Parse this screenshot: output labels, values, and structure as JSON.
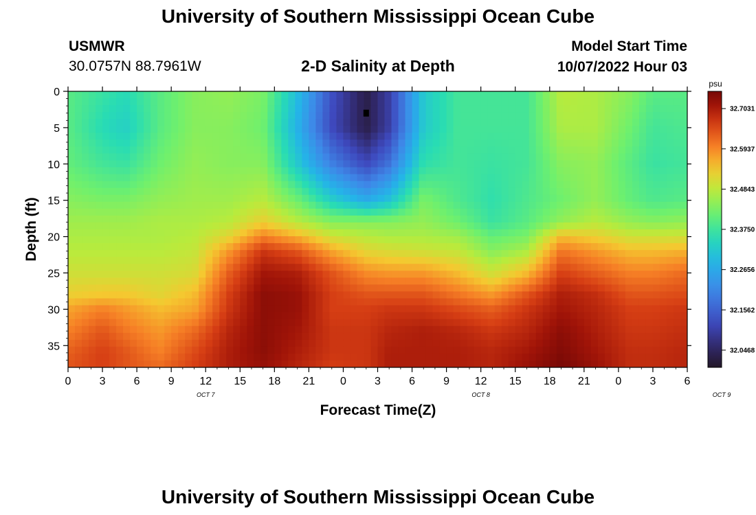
{
  "header": {
    "title": "University of Southern Mississippi Ocean Cube",
    "station_id": "USMWR",
    "coordinates": "30.0757N  88.7961W",
    "chart_title": "2-D Salinity at Depth",
    "model_start_label": "Model Start Time",
    "model_start_value": "10/07/2022 Hour 03"
  },
  "footer": {
    "title": "University of Southern Mississippi Ocean Cube"
  },
  "chart_data": {
    "type": "heatmap",
    "title": "2-D Salinity at Depth",
    "xlabel": "Forecast Time(Z)",
    "ylabel": "Depth (ft)",
    "x_tick_labels": [
      "0",
      "3",
      "6",
      "9",
      "12",
      "15",
      "18",
      "21",
      "0",
      "3",
      "6",
      "9",
      "12",
      "15",
      "18",
      "21",
      "0",
      "3",
      "6"
    ],
    "x_day_labels": [
      {
        "label": "OCT 7",
        "hour": 12
      },
      {
        "label": "OCT 8",
        "hour": 36
      },
      {
        "label": "OCT 9",
        "hour": 57
      }
    ],
    "xlim_hours": [
      0,
      54
    ],
    "y_ticks": [
      0,
      5,
      10,
      15,
      20,
      25,
      30,
      35
    ],
    "ylim": [
      0,
      38
    ],
    "y_inverted": true,
    "colorbar": {
      "unit": "psu",
      "min": 32.0,
      "max": 32.75,
      "tick_values": [
        32.7031,
        32.5937,
        32.4843,
        32.375,
        32.2656,
        32.1562,
        32.0468
      ],
      "tick_labels": [
        "32.7031",
        "32.5937",
        "32.4843",
        "32.3750",
        "32.2656",
        "32.1562",
        "32.0468"
      ]
    },
    "surface_marker": {
      "hour": 26,
      "depth": 3
    },
    "salinity_profiles": {
      "depths_ft": [
        0,
        5,
        10,
        15,
        18,
        20,
        22,
        25,
        28,
        30,
        33,
        36,
        38
      ],
      "columns": [
        {
          "hour": 0,
          "values": [
            32.4,
            32.4,
            32.41,
            32.44,
            32.46,
            32.47,
            32.48,
            32.5,
            32.53,
            32.57,
            32.6,
            32.63,
            32.64
          ]
        },
        {
          "hour": 3,
          "values": [
            32.37,
            32.35,
            32.38,
            32.43,
            32.46,
            32.47,
            32.48,
            32.5,
            32.54,
            32.6,
            32.64,
            32.66,
            32.66
          ]
        },
        {
          "hour": 5,
          "values": [
            32.35,
            32.33,
            32.37,
            32.43,
            32.46,
            32.47,
            32.48,
            32.5,
            32.54,
            32.58,
            32.61,
            32.64,
            32.64
          ]
        },
        {
          "hour": 8,
          "values": [
            32.4,
            32.4,
            32.42,
            32.45,
            32.47,
            32.47,
            32.48,
            32.5,
            32.52,
            32.55,
            32.58,
            32.6,
            32.62
          ]
        },
        {
          "hour": 11,
          "values": [
            32.44,
            32.44,
            32.45,
            32.46,
            32.47,
            32.48,
            32.49,
            32.51,
            32.55,
            32.57,
            32.62,
            32.65,
            32.66
          ]
        },
        {
          "hour": 14,
          "values": [
            32.45,
            32.44,
            32.44,
            32.46,
            32.48,
            32.52,
            32.58,
            32.63,
            32.66,
            32.67,
            32.69,
            32.7,
            32.7
          ]
        },
        {
          "hour": 17,
          "values": [
            32.43,
            32.42,
            32.44,
            32.48,
            32.53,
            32.6,
            32.67,
            32.71,
            32.73,
            32.73,
            32.73,
            32.73,
            32.72
          ]
        },
        {
          "hour": 20,
          "values": [
            32.3,
            32.28,
            32.32,
            32.42,
            32.48,
            32.56,
            32.64,
            32.7,
            32.72,
            32.72,
            32.71,
            32.7,
            32.69
          ]
        },
        {
          "hour": 23,
          "values": [
            32.13,
            32.12,
            32.2,
            32.33,
            32.44,
            32.5,
            32.57,
            32.64,
            32.66,
            32.66,
            32.67,
            32.67,
            32.66
          ]
        },
        {
          "hour": 26,
          "values": [
            32.03,
            32.03,
            32.12,
            32.27,
            32.44,
            32.48,
            32.52,
            32.59,
            32.64,
            32.66,
            32.67,
            32.67,
            32.67
          ]
        },
        {
          "hour": 28,
          "values": [
            32.1,
            32.1,
            32.18,
            32.31,
            32.44,
            32.47,
            32.51,
            32.58,
            32.64,
            32.67,
            32.69,
            32.7,
            32.7
          ]
        },
        {
          "hour": 31,
          "values": [
            32.32,
            32.32,
            32.36,
            32.43,
            32.45,
            32.47,
            32.5,
            32.58,
            32.64,
            32.67,
            32.7,
            32.7,
            32.7
          ]
        },
        {
          "hour": 34,
          "values": [
            32.38,
            32.38,
            32.38,
            32.39,
            32.42,
            32.46,
            32.49,
            32.55,
            32.61,
            32.65,
            32.69,
            32.7,
            32.7
          ]
        },
        {
          "hour": 37,
          "values": [
            32.38,
            32.38,
            32.37,
            32.36,
            32.37,
            32.41,
            32.44,
            32.5,
            32.58,
            32.63,
            32.67,
            32.69,
            32.69
          ]
        },
        {
          "hour": 40,
          "values": [
            32.38,
            32.38,
            32.38,
            32.39,
            32.4,
            32.43,
            32.47,
            32.55,
            32.64,
            32.67,
            32.69,
            32.71,
            32.72
          ]
        },
        {
          "hour": 43,
          "values": [
            32.48,
            32.47,
            32.44,
            32.42,
            32.45,
            32.55,
            32.61,
            32.66,
            32.7,
            32.71,
            32.73,
            32.74,
            32.75
          ]
        },
        {
          "hour": 46,
          "values": [
            32.47,
            32.47,
            32.45,
            32.45,
            32.48,
            32.53,
            32.58,
            32.63,
            32.68,
            32.69,
            32.7,
            32.71,
            32.72
          ]
        },
        {
          "hour": 49,
          "values": [
            32.44,
            32.42,
            32.4,
            32.41,
            32.45,
            32.5,
            32.55,
            32.6,
            32.64,
            32.66,
            32.67,
            32.68,
            32.68
          ]
        },
        {
          "hour": 51,
          "values": [
            32.4,
            32.38,
            32.37,
            32.39,
            32.44,
            32.5,
            32.55,
            32.6,
            32.64,
            32.66,
            32.67,
            32.68,
            32.68
          ]
        },
        {
          "hour": 54,
          "values": [
            32.4,
            32.39,
            32.38,
            32.4,
            32.45,
            32.5,
            32.56,
            32.62,
            32.65,
            32.67,
            32.68,
            32.69,
            32.69
          ]
        }
      ]
    }
  }
}
